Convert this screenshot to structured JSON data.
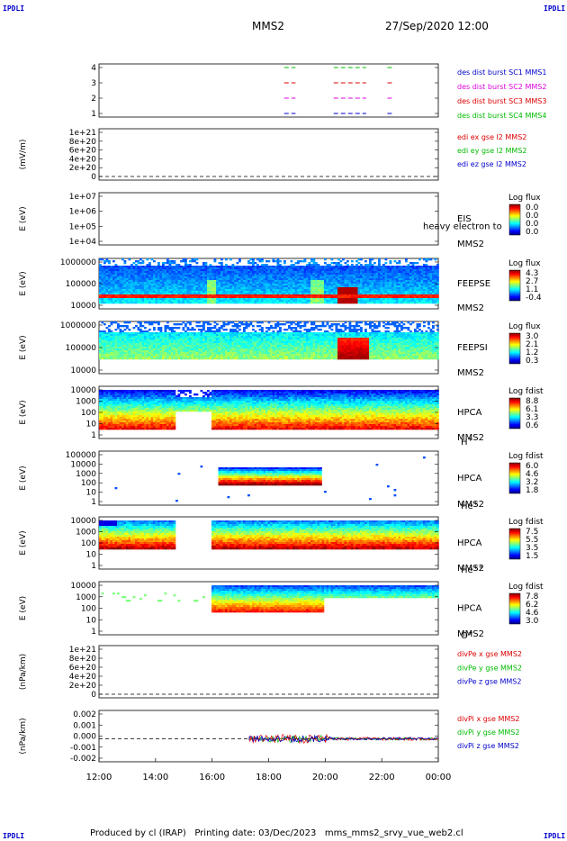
{
  "corners": {
    "tl": "IPDLI",
    "tr": "IPDLI",
    "bl": "IPDLI",
    "br": "IPDLI"
  },
  "header": {
    "title": "MMS2",
    "date": "27/Sep/2020 12:00"
  },
  "footer": {
    "text": "Produced by cl (IRAP)   Printing date: 03/Dec/2023   mms_mms2_srvy_vue_web2.cl"
  },
  "colors": {
    "red": "#dd0000",
    "green": "#00bb00",
    "blue": "#0000cc",
    "magenta": "#dd00dd"
  },
  "chart_data": {
    "type": "heatmap",
    "x_range_hours": [
      12,
      24
    ],
    "x_tick_labels": [
      "12:00",
      "14:00",
      "16:00",
      "18:00",
      "20:00",
      "22:00",
      "00:00"
    ],
    "panels": [
      {
        "id": "burst",
        "type": "scatter",
        "ytick_labels": [
          "4",
          "3",
          "2",
          "1"
        ],
        "legend": [
          {
            "text": "des dist burst SC1 MMS1",
            "color": "#0000cc"
          },
          {
            "text": "des dist burst SC2 MMS2",
            "color": "#dd00dd"
          },
          {
            "text": "des dist burst SC3 MMS3",
            "color": "#dd0000"
          },
          {
            "text": "des dist burst SC4 MMS4",
            "color": "#00bb00"
          }
        ],
        "intervals_hours": [
          [
            18.55,
            18.95
          ],
          [
            20.3,
            21.45
          ],
          [
            22.2,
            22.4
          ]
        ]
      },
      {
        "id": "edi",
        "type": "line",
        "ylabel": "(mV/m)",
        "ytick_labels": [
          "1e+21",
          "8e+20",
          "6e+20",
          "4e+20",
          "2e+20",
          "0"
        ],
        "legend": [
          {
            "text": "edi ex gse l2 MMS2",
            "color": "#dd0000"
          },
          {
            "text": "edi ey gse l2 MMS2",
            "color": "#00bb00"
          },
          {
            "text": "edi ez gse l2 MMS2",
            "color": "#0000cc"
          }
        ]
      },
      {
        "id": "eis",
        "type": "heatmap",
        "ylabel": "E (eV)",
        "ytick_labels": [
          "1e+07",
          "1e+06",
          "1e+05",
          "1e+04"
        ],
        "labels": [
          "EIS",
          "MMS2"
        ],
        "overlay_text": "heavy electron to",
        "colorbar": {
          "title": "Log flux",
          "ticks": [
            "0.0",
            "0.0",
            "0.0",
            "0.0"
          ]
        }
      },
      {
        "id": "feeps_e",
        "type": "heatmap",
        "ylabel": "E (eV)",
        "ytick_labels": [
          "1000000",
          "100000",
          "10000"
        ],
        "labels": [
          "FEEPSE",
          "MMS2"
        ],
        "colorbar": {
          "title": "Log flux",
          "ticks": [
            "4.3",
            "2.7",
            "1.1",
            "-0.4"
          ]
        }
      },
      {
        "id": "feeps_i",
        "type": "heatmap",
        "ylabel": "E (eV)",
        "ytick_labels": [
          "1000000",
          "100000",
          "10000"
        ],
        "labels": [
          "FEEPSI",
          "MMS2"
        ],
        "colorbar": {
          "title": "Log flux",
          "ticks": [
            "3.0",
            "2.1",
            "1.2",
            "0.3"
          ]
        }
      },
      {
        "id": "hpca_h",
        "type": "heatmap",
        "ylabel": "E (eV)",
        "ytick_labels": [
          "10000",
          "1000",
          "100",
          "10",
          "1"
        ],
        "labels": [
          "HPCA",
          "MMS2"
        ],
        "species": "H",
        "species_sup": "+",
        "colorbar": {
          "title": "Log fdist",
          "ticks": [
            "8.8",
            "6.1",
            "3.3",
            "0.6"
          ]
        }
      },
      {
        "id": "hpca_he",
        "type": "heatmap",
        "ylabel": "E (eV)",
        "ytick_labels": [
          "100000",
          "10000",
          "1000",
          "100",
          "10",
          "1"
        ],
        "labels": [
          "HPCA",
          "MMS2"
        ],
        "species": "He",
        "species_sup": "+",
        "colorbar": {
          "title": "Log fdist",
          "ticks": [
            "6.0",
            "4.6",
            "3.2",
            "1.8"
          ]
        }
      },
      {
        "id": "hpca_he2",
        "type": "heatmap",
        "ylabel": "E (eV)",
        "ytick_labels": [
          "10000",
          "1000",
          "100",
          "10",
          "1"
        ],
        "labels": [
          "HPCA",
          "MMS2"
        ],
        "species": "He",
        "species_sup": "++",
        "colorbar": {
          "title": "Log fdist",
          "ticks": [
            "7.5",
            "5.5",
            "3.5",
            "1.5"
          ]
        }
      },
      {
        "id": "hpca_o",
        "type": "heatmap",
        "ylabel": "E (eV)",
        "ytick_labels": [
          "10000",
          "1000",
          "100",
          "10",
          "1"
        ],
        "labels": [
          "HPCA",
          "MMS2"
        ],
        "species": "O",
        "species_sup": "+",
        "colorbar": {
          "title": "Log fdist",
          "ticks": [
            "7.8",
            "6.2",
            "4.6",
            "3.0"
          ]
        }
      },
      {
        "id": "divpe",
        "type": "line",
        "ylabel": "(nPa/km)",
        "ytick_labels": [
          "1e+21",
          "8e+20",
          "6e+20",
          "4e+20",
          "2e+20",
          "0"
        ],
        "legend": [
          {
            "text": "divPe x gse MMS2",
            "color": "#dd0000"
          },
          {
            "text": "divPe y gse MMS2",
            "color": "#00bb00"
          },
          {
            "text": "divPe z gse MMS2",
            "color": "#0000cc"
          }
        ]
      },
      {
        "id": "divpi",
        "type": "line",
        "ylabel": "(nPa/km)",
        "ytick_labels": [
          "0.002",
          "0.001",
          "0.000",
          "-0.001",
          "-0.002"
        ],
        "legend": [
          {
            "text": "divPi x gse MMS2",
            "color": "#dd0000"
          },
          {
            "text": "divPi y gse MMS2",
            "color": "#00bb00"
          },
          {
            "text": "divPi z gse MMS2",
            "color": "#0000cc"
          }
        ]
      }
    ]
  }
}
